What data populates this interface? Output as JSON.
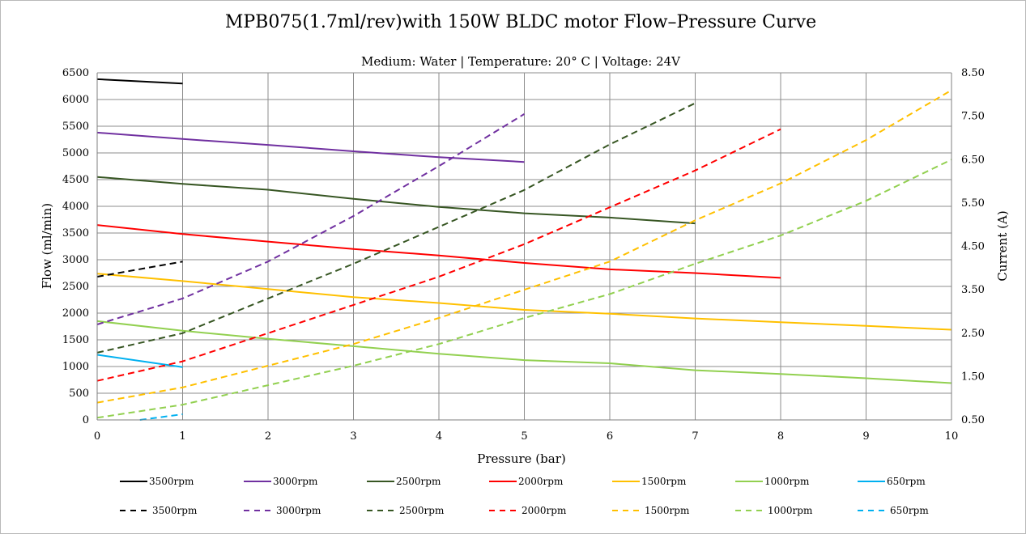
{
  "chart_data": {
    "type": "line",
    "title": "MPB075(1.7ml/rev)with 150W BLDC motor Flow–Pressure Curve",
    "subtitle": "Medium: Water | Temperature: 20° C | Voltage: 24V",
    "xlabel": "Pressure (bar)",
    "ylabel": "Flow (ml/min)",
    "y2label": "Current (A)",
    "xlim": [
      0,
      10
    ],
    "ylim": [
      0,
      6500
    ],
    "y2lim": [
      0.5,
      8.5
    ],
    "x_ticks": [
      "0",
      "1",
      "2",
      "3",
      "4",
      "5",
      "6",
      "7",
      "8",
      "9",
      "10"
    ],
    "y_ticks": [
      "0",
      "500",
      "1000",
      "1500",
      "2000",
      "2500",
      "3000",
      "3500",
      "4000",
      "4500",
      "5000",
      "5500",
      "6000",
      "6500"
    ],
    "y2_ticks": [
      "0.50",
      "1.50",
      "2.50",
      "3.50",
      "4.50",
      "5.50",
      "6.50",
      "7.50",
      "8.50"
    ],
    "grid": true,
    "legend_position": "bottom",
    "series": [
      {
        "name": "3500rpm",
        "axis": "flow",
        "style": "solid",
        "color": "#000000",
        "x": [
          0,
          1
        ],
        "y": [
          6380,
          6300
        ]
      },
      {
        "name": "3000rpm",
        "axis": "flow",
        "style": "solid",
        "color": "#7030a0",
        "x": [
          0,
          1,
          2,
          3,
          4,
          5
        ],
        "y": [
          5380,
          5260,
          5150,
          5030,
          4920,
          4830
        ]
      },
      {
        "name": "2500rpm",
        "axis": "flow",
        "style": "solid",
        "color": "#375623",
        "x": [
          0,
          1,
          2,
          3,
          4,
          5,
          6,
          7
        ],
        "y": [
          4550,
          4420,
          4310,
          4140,
          3990,
          3870,
          3790,
          3680
        ]
      },
      {
        "name": "2000rpm",
        "axis": "flow",
        "style": "solid",
        "color": "#ff0000",
        "x": [
          0,
          1,
          2,
          3,
          4,
          5,
          6,
          7,
          8
        ],
        "y": [
          3650,
          3480,
          3340,
          3200,
          3080,
          2940,
          2820,
          2750,
          2660
        ]
      },
      {
        "name": "1500rpm",
        "axis": "flow",
        "style": "solid",
        "color": "#ffc000",
        "x": [
          0,
          1,
          2,
          3,
          4,
          5,
          6,
          7,
          8,
          9,
          10
        ],
        "y": [
          2740,
          2600,
          2450,
          2300,
          2190,
          2060,
          1990,
          1900,
          1830,
          1760,
          1690
        ]
      },
      {
        "name": "1000rpm",
        "axis": "flow",
        "style": "solid",
        "color": "#92d050",
        "x": [
          0,
          1,
          2,
          3,
          4,
          5,
          6,
          7,
          8,
          9,
          10
        ],
        "y": [
          1850,
          1670,
          1520,
          1380,
          1240,
          1120,
          1060,
          930,
          860,
          780,
          690
        ]
      },
      {
        "name": "650rpm",
        "axis": "flow",
        "style": "solid",
        "color": "#00b0f0",
        "x": [
          0,
          1
        ],
        "y": [
          1220,
          990
        ]
      },
      {
        "name": "3500rpm",
        "axis": "current",
        "style": "dashed",
        "color": "#000000",
        "x": [
          0,
          1
        ],
        "y": [
          3.8,
          4.15
        ]
      },
      {
        "name": "3000rpm",
        "axis": "current",
        "style": "dashed",
        "color": "#7030a0",
        "x": [
          0,
          1,
          2,
          3,
          4,
          5
        ],
        "y": [
          2.7,
          3.3,
          4.15,
          5.2,
          6.35,
          7.55
        ]
      },
      {
        "name": "2500rpm",
        "axis": "current",
        "style": "dashed",
        "color": "#375623",
        "x": [
          0,
          1,
          2,
          3,
          4,
          5,
          6,
          7
        ],
        "y": [
          2.05,
          2.5,
          3.3,
          4.1,
          4.95,
          5.8,
          6.85,
          7.8
        ]
      },
      {
        "name": "2000rpm",
        "axis": "current",
        "style": "dashed",
        "color": "#ff0000",
        "x": [
          0,
          1,
          2,
          3,
          4,
          5,
          6,
          7,
          8
        ],
        "y": [
          1.4,
          1.85,
          2.5,
          3.15,
          3.8,
          4.55,
          5.4,
          6.25,
          7.2
        ]
      },
      {
        "name": "1500rpm",
        "axis": "current",
        "style": "dashed",
        "color": "#ffc000",
        "x": [
          0,
          1,
          2,
          3,
          4,
          5,
          6,
          7,
          8,
          9,
          10
        ],
        "y": [
          0.9,
          1.25,
          1.75,
          2.25,
          2.85,
          3.5,
          4.15,
          5.1,
          5.95,
          6.95,
          8.1
        ]
      },
      {
        "name": "1000rpm",
        "axis": "current",
        "style": "dashed",
        "color": "#92d050",
        "x": [
          0,
          1,
          2,
          3,
          4,
          5,
          6,
          7,
          8,
          9,
          10
        ],
        "y": [
          0.55,
          0.85,
          1.3,
          1.75,
          2.25,
          2.85,
          3.4,
          4.1,
          4.75,
          5.55,
          6.5
        ]
      },
      {
        "name": "650rpm",
        "axis": "current",
        "style": "dashed",
        "color": "#00b0f0",
        "x": [
          0.5,
          1
        ],
        "y": [
          0.5,
          0.63
        ]
      }
    ]
  }
}
